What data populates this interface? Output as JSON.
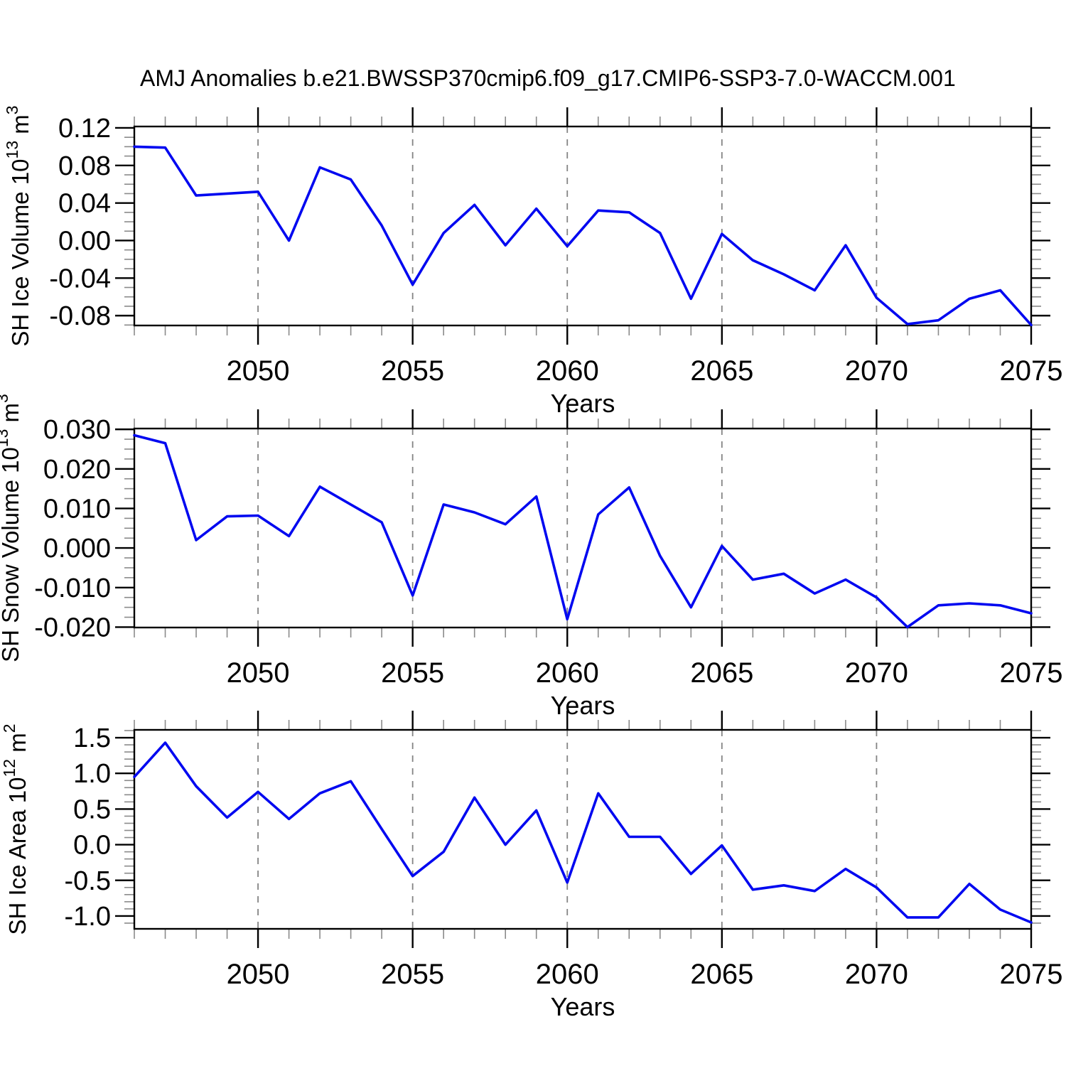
{
  "title": "AMJ Anomalies b.e21.BWSSP370cmip6.f09_g17.CMIP6-SSP3-7.0-WACCM.001",
  "colors": {
    "line": "#0008f0",
    "axis": "#000000",
    "grid_dash": "#848484",
    "minor_tick": "#8a8a8a",
    "background": "#ffffff",
    "text": "#000000"
  },
  "x_axis": {
    "label": "Years",
    "start": 2046,
    "end": 2075,
    "major_tick_labels": [
      "2050",
      "2055",
      "2060",
      "2065",
      "2070",
      "2075"
    ],
    "major_ticks": [
      2050,
      2055,
      2060,
      2065,
      2070,
      2075
    ],
    "minor_step": 1,
    "grid_years": [
      2050,
      2055,
      2060,
      2065,
      2070
    ]
  },
  "chart_data": [
    {
      "type": "line",
      "name": "sh-ice-volume",
      "ylabel_text": "SH Ice Volume 10^13 m^3",
      "ylabel_parts": [
        {
          "t": "SH Ice Volume 10",
          "sup": false
        },
        {
          "t": "13",
          "sup": true
        },
        {
          "t": " m",
          "sup": false
        },
        {
          "t": "3",
          "sup": true
        }
      ],
      "xlabel": "Years",
      "grid": "vertical-dashed",
      "legend": "none",
      "ylim": [
        -0.0905,
        0.1215
      ],
      "yticks": [
        {
          "v": 0.12,
          "label": "0.12"
        },
        {
          "v": 0.08,
          "label": "0.08"
        },
        {
          "v": 0.04,
          "label": "0.04"
        },
        {
          "v": 0.0,
          "label": "0.00"
        },
        {
          "v": -0.04,
          "label": "-0.04"
        },
        {
          "v": -0.08,
          "label": "-0.08"
        }
      ],
      "minor_step": 0.01,
      "x": [
        2046,
        2047,
        2048,
        2049,
        2050,
        2051,
        2052,
        2053,
        2054,
        2055,
        2056,
        2057,
        2058,
        2059,
        2060,
        2061,
        2062,
        2063,
        2064,
        2065,
        2066,
        2067,
        2068,
        2069,
        2070,
        2071,
        2072,
        2073,
        2074,
        2075
      ],
      "values": [
        0.1,
        0.099,
        0.048,
        0.05,
        0.052,
        0.0,
        0.078,
        0.065,
        0.016,
        -0.047,
        0.008,
        0.038,
        -0.005,
        0.034,
        -0.006,
        0.032,
        0.03,
        0.008,
        -0.062,
        0.007,
        -0.021,
        -0.036,
        -0.053,
        -0.005,
        -0.061,
        -0.089,
        -0.085,
        -0.062,
        -0.053,
        -0.09
      ]
    },
    {
      "type": "line",
      "name": "sh-snow-volume",
      "ylabel_text": "SH Snow Volume 10^13 m^3",
      "ylabel_parts": [
        {
          "t": "SH Snow Volume 10",
          "sup": false
        },
        {
          "t": "13",
          "sup": true
        },
        {
          "t": " m",
          "sup": false
        },
        {
          "t": "3",
          "sup": true
        }
      ],
      "xlabel": "Years",
      "grid": "vertical-dashed",
      "legend": "none",
      "ylim": [
        -0.0201,
        0.0302
      ],
      "yticks": [
        {
          "v": 0.03,
          "label": "0.030"
        },
        {
          "v": 0.02,
          "label": "0.020"
        },
        {
          "v": 0.01,
          "label": "0.010"
        },
        {
          "v": 0.0,
          "label": "0.000"
        },
        {
          "v": -0.01,
          "label": "-0.010"
        },
        {
          "v": -0.02,
          "label": "-0.020"
        }
      ],
      "minor_step": 0.0025,
      "x": [
        2046,
        2047,
        2048,
        2049,
        2050,
        2051,
        2052,
        2053,
        2054,
        2055,
        2056,
        2057,
        2058,
        2059,
        2060,
        2061,
        2062,
        2063,
        2064,
        2065,
        2066,
        2067,
        2068,
        2069,
        2070,
        2071,
        2072,
        2073,
        2074,
        2075
      ],
      "values": [
        0.0285,
        0.0265,
        0.002,
        0.008,
        0.0082,
        0.003,
        0.0155,
        0.011,
        0.0065,
        -0.012,
        0.011,
        0.009,
        0.006,
        0.013,
        -0.018,
        0.0085,
        0.0153,
        -0.002,
        -0.015,
        0.0005,
        -0.008,
        -0.0065,
        -0.0115,
        -0.008,
        -0.0125,
        -0.02,
        -0.0145,
        -0.014,
        -0.0145,
        -0.0165
      ]
    },
    {
      "type": "line",
      "name": "sh-ice-area",
      "ylabel_text": "SH Ice Area 10^12 m^2",
      "ylabel_parts": [
        {
          "t": "SH Ice Area 10",
          "sup": false
        },
        {
          "t": "12",
          "sup": true
        },
        {
          "t": " m",
          "sup": false
        },
        {
          "t": "2",
          "sup": true
        }
      ],
      "xlabel": "Years",
      "grid": "vertical-dashed",
      "legend": "none",
      "ylim": [
        -1.18,
        1.61
      ],
      "yticks": [
        {
          "v": 1.5,
          "label": "1.5"
        },
        {
          "v": 1.0,
          "label": "1.0"
        },
        {
          "v": 0.5,
          "label": "0.5"
        },
        {
          "v": 0.0,
          "label": "0.0"
        },
        {
          "v": -0.5,
          "label": "-0.5"
        },
        {
          "v": -1.0,
          "label": "-1.0"
        }
      ],
      "minor_step": 0.1,
      "x": [
        2046,
        2047,
        2048,
        2049,
        2050,
        2051,
        2052,
        2053,
        2054,
        2055,
        2056,
        2057,
        2058,
        2059,
        2060,
        2061,
        2062,
        2063,
        2064,
        2065,
        2066,
        2067,
        2068,
        2069,
        2070,
        2071,
        2072,
        2073,
        2074,
        2075
      ],
      "values": [
        0.95,
        1.43,
        0.82,
        0.38,
        0.74,
        0.36,
        0.72,
        0.89,
        0.22,
        -0.44,
        -0.1,
        0.66,
        0.0,
        0.48,
        -0.53,
        0.72,
        0.11,
        0.11,
        -0.41,
        -0.01,
        -0.63,
        -0.57,
        -0.65,
        -0.34,
        -0.6,
        -1.02,
        -1.02,
        -0.55,
        -0.91,
        -1.09
      ]
    }
  ]
}
